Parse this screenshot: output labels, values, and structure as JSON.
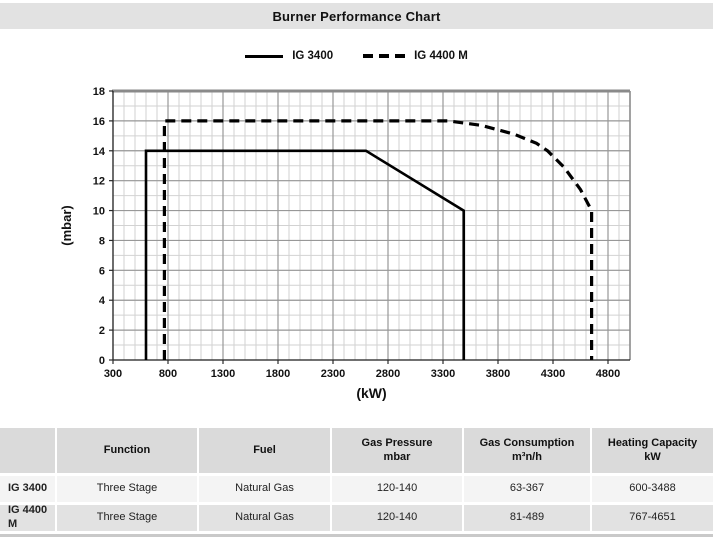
{
  "colors": {
    "title_bar_bg": "#e2e2e2",
    "grid_minor": "#d2d2d2",
    "grid_major": "#989898",
    "border_gray": "#8a8a8a",
    "series_line": "#000000",
    "table_header_bg": "#dadada",
    "row_odd_bg": "#f4f4f4",
    "row_even_bg": "#e2e2e2",
    "bottom_strip": "#c9c9c9"
  },
  "chart_data": {
    "type": "line",
    "title": "Burner Performance Chart",
    "xlabel": "(kW)",
    "ylabel": "(mbar)",
    "xlim": [
      300,
      5000
    ],
    "ylim": [
      0,
      18
    ],
    "xticks": [
      300,
      800,
      1300,
      1800,
      2300,
      2800,
      3300,
      3800,
      4300,
      4800
    ],
    "yticks": [
      0,
      2,
      4,
      6,
      8,
      10,
      12,
      14,
      16,
      18
    ],
    "x_minor_step": 100,
    "y_minor_step": 1,
    "grid": true,
    "legend_position": "top-center",
    "series": [
      {
        "name": "IG 3400",
        "line_style": "solid",
        "points": [
          [
            600,
            0
          ],
          [
            600,
            14
          ],
          [
            2600,
            14
          ],
          [
            3488,
            10
          ],
          [
            3488,
            0
          ]
        ]
      },
      {
        "name": "IG 4400 M",
        "line_style": "dashed",
        "points": [
          [
            767,
            0
          ],
          [
            767,
            16
          ],
          [
            3350,
            16
          ],
          [
            3650,
            15.7
          ],
          [
            3950,
            15.1
          ],
          [
            4150,
            14.5
          ],
          [
            4250,
            14
          ],
          [
            4400,
            12.9
          ],
          [
            4550,
            11.4
          ],
          [
            4651,
            10
          ],
          [
            4651,
            0
          ]
        ]
      }
    ]
  },
  "table": {
    "headers": [
      {
        "line1": "",
        "line2": ""
      },
      {
        "line1": "Function",
        "line2": ""
      },
      {
        "line1": "Fuel",
        "line2": ""
      },
      {
        "line1": "Gas Pressure",
        "line2": "mbar"
      },
      {
        "line1": "Gas Consumption",
        "line2": "m³n/h"
      },
      {
        "line1": "Heating Capacity",
        "line2": "kW"
      }
    ],
    "rows": [
      {
        "model": "IG 3400",
        "function": "Three Stage",
        "fuel": "Natural Gas",
        "gas_pressure": "120-140",
        "gas_consumption": "63-367",
        "heating_capacity": "600-3488"
      },
      {
        "model": "IG 4400 M",
        "function": "Three Stage",
        "fuel": "Natural Gas",
        "gas_pressure": "120-140",
        "gas_consumption": "81-489",
        "heating_capacity": "767-4651"
      }
    ]
  }
}
